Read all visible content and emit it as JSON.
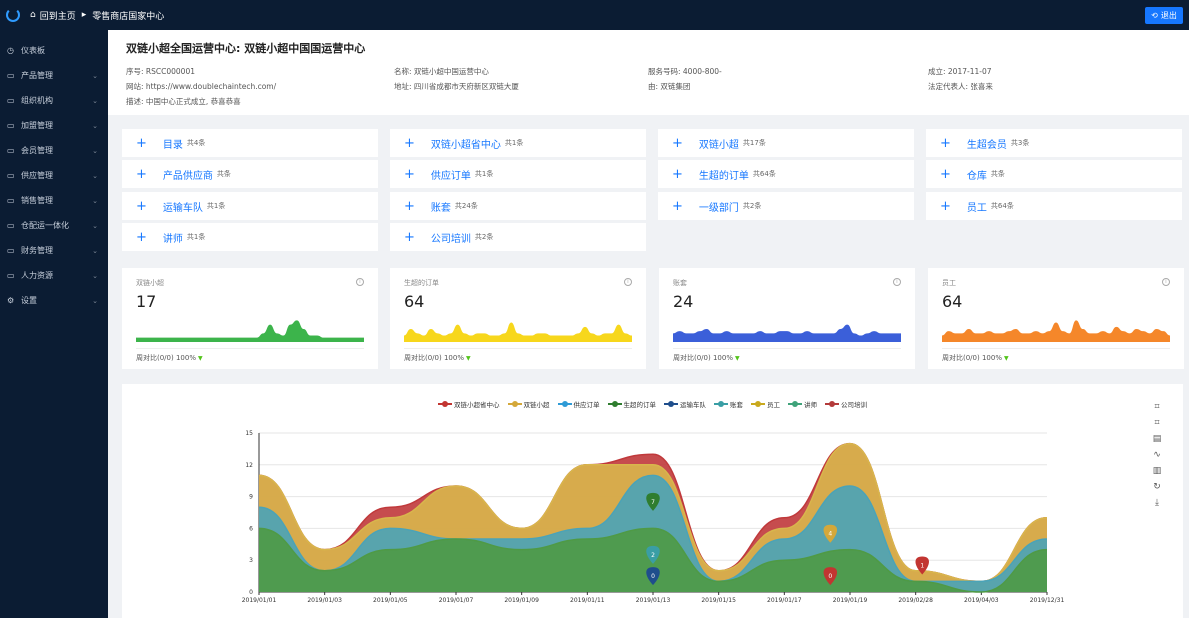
{
  "topbar": {
    "home_label": "回到主页",
    "breadcrumb": "零售商店国家中心",
    "logout_label": "退出"
  },
  "sidebar": {
    "items": [
      {
        "label": "仪表板",
        "icon": "clock-icon",
        "has_children": false
      },
      {
        "label": "产品管理",
        "icon": "folder-icon",
        "has_children": true
      },
      {
        "label": "组织机构",
        "icon": "folder-icon",
        "has_children": true
      },
      {
        "label": "加盟管理",
        "icon": "folder-icon",
        "has_children": true
      },
      {
        "label": "会员管理",
        "icon": "folder-icon",
        "has_children": true
      },
      {
        "label": "供应管理",
        "icon": "folder-icon",
        "has_children": true
      },
      {
        "label": "销售管理",
        "icon": "folder-icon",
        "has_children": true
      },
      {
        "label": "仓配运一体化",
        "icon": "folder-icon",
        "has_children": true
      },
      {
        "label": "财务管理",
        "icon": "folder-icon",
        "has_children": true
      },
      {
        "label": "人力资源",
        "icon": "folder-icon",
        "has_children": true
      },
      {
        "label": "设置",
        "icon": "gear-icon",
        "has_children": true
      }
    ]
  },
  "info": {
    "title": "双链小超全国运营中心: 双链小超中国国运营中心",
    "fields": {
      "serial": "序号: RSCC000001",
      "name": "名称: 双链小超中国运营中心",
      "service_no": "服务号码: 4000-800-",
      "founded": "成立: 2017-11-07",
      "website": "网站: https://www.doublechaintech.com/",
      "address": "地址: 四川省成都市天府新区双链大厦",
      "by": "由: 双链集团",
      "legal_rep": "法定代表人: 张喜来",
      "desc": "描述: 中国中心正式成立, 恭喜恭喜"
    }
  },
  "shortcuts": [
    {
      "name": "目录",
      "count": "共4条"
    },
    {
      "name": "双链小超省中心",
      "count": "共1条"
    },
    {
      "name": "双链小超",
      "count": "共17条"
    },
    {
      "name": "生超会员",
      "count": "共3条"
    },
    {
      "name": "产品供应商",
      "count": "共条"
    },
    {
      "name": "供应订单",
      "count": "共1条"
    },
    {
      "name": "生超的订单",
      "count": "共64条"
    },
    {
      "name": "仓库",
      "count": "共条"
    },
    {
      "name": "运输车队",
      "count": "共1条"
    },
    {
      "name": "账套",
      "count": "共24条"
    },
    {
      "name": "一级部门",
      "count": "共2条"
    },
    {
      "name": "员工",
      "count": "共64条"
    },
    {
      "name": "讲师",
      "count": "共1条"
    },
    {
      "name": "公司培训",
      "count": "共2条"
    }
  ],
  "stats": [
    {
      "label": "双链小超",
      "value": "17",
      "footer": "周对比(0/0)",
      "pct": "100%",
      "color": "#3cb44b"
    },
    {
      "label": "生超的订单",
      "value": "64",
      "footer": "周对比(0/0)",
      "pct": "100%",
      "color": "#f7d71c"
    },
    {
      "label": "账套",
      "value": "24",
      "footer": "周对比(0/0)",
      "pct": "100%",
      "color": "#3b5fd9"
    },
    {
      "label": "员工",
      "value": "64",
      "footer": "周对比(0/0)",
      "pct": "100%",
      "color": "#f5872a"
    }
  ],
  "chart_data": {
    "type": "area",
    "title": "",
    "xlabel": "",
    "ylabel": "",
    "ylim": [
      0,
      15
    ],
    "yticks": [
      0,
      3,
      6,
      9,
      12,
      15
    ],
    "x": [
      "2019/01/01",
      "2019/01/03",
      "2019/01/05",
      "2019/01/07",
      "2019/01/09",
      "2019/01/11",
      "2019/01/13",
      "2019/01/15",
      "2019/01/17",
      "2019/01/19",
      "2019/02/28",
      "2019/04/03",
      "2019/12/31"
    ],
    "legend": [
      {
        "name": "双链小超省中心",
        "color": "#c23531"
      },
      {
        "name": "双链小超",
        "color": "#d4a83a"
      },
      {
        "name": "供应订单",
        "color": "#2f9bd6"
      },
      {
        "name": "生超的订单",
        "color": "#2f7d2f"
      },
      {
        "name": "运输车队",
        "color": "#1f4e8c"
      },
      {
        "name": "账套",
        "color": "#3a9ea5"
      },
      {
        "name": "员工",
        "color": "#c9a91e"
      },
      {
        "name": "讲师",
        "color": "#3fa37a"
      },
      {
        "name": "公司培训",
        "color": "#b33a3a"
      }
    ],
    "series": [
      {
        "name": "生超的订单",
        "color": "#4f9a45",
        "values": [
          6,
          2,
          4,
          5,
          4,
          5,
          6,
          1,
          3,
          4,
          1,
          0,
          4
        ]
      },
      {
        "name": "账套",
        "color": "#4aa3b8",
        "values": [
          8,
          2,
          6,
          5,
          5,
          6,
          11,
          1,
          5,
          10,
          1,
          1,
          5
        ]
      },
      {
        "name": "双链小超",
        "color": "#d8b64c",
        "values": [
          11,
          4,
          7,
          10,
          6,
          12,
          12,
          2,
          6,
          14,
          2,
          1,
          7
        ]
      },
      {
        "name": "双链小超省中心",
        "color": "#c0393b",
        "values": [
          11,
          4,
          8,
          10,
          6,
          12,
          13,
          2,
          7,
          14,
          2,
          1,
          7
        ]
      }
    ],
    "pins": [
      {
        "label": "7",
        "x_index": 6,
        "value": 8.5,
        "color": "#2f7d2f"
      },
      {
        "label": "2",
        "x_index": 6,
        "value": 3.5,
        "color": "#3a9ea5"
      },
      {
        "label": "0",
        "x_index": 6,
        "value": 1.5,
        "color": "#1f4e8c"
      },
      {
        "label": "4",
        "x_index": 8.7,
        "value": 5.5,
        "color": "#d4a83a"
      },
      {
        "label": "0",
        "x_index": 8.7,
        "value": 1.5,
        "color": "#c23531"
      },
      {
        "label": "1",
        "x_index": 10.1,
        "value": 2.5,
        "color": "#c23531"
      }
    ]
  },
  "toolbox": [
    "zoom-icon",
    "zoom-reset-icon",
    "data-view-icon",
    "line-icon",
    "bar-icon",
    "restore-icon",
    "download-icon"
  ]
}
